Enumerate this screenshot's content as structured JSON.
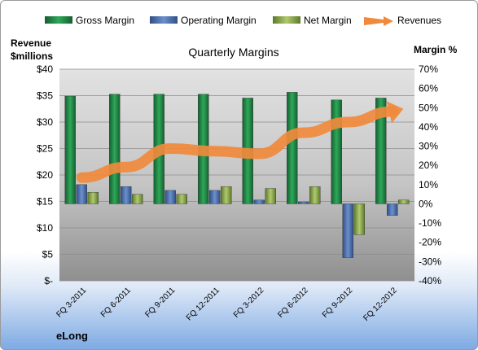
{
  "chart_data": {
    "type": "bar",
    "title": "Quarterly Margins",
    "y_left_label_line1": "Revenue",
    "y_left_label_line2": "$millions",
    "y_right_label": "Margin %",
    "brand": "eLong",
    "categories": [
      "FQ 3-2011",
      "FQ 6-2011",
      "FQ 9-2011",
      "FQ 12-2011",
      "FQ 3-2012",
      "FQ 6-2012",
      "FQ 9-2012",
      "FQ 12-2012"
    ],
    "series": [
      {
        "name": "Gross Margin",
        "axis": "right",
        "color": "#1f8a45",
        "values": [
          56,
          57,
          57,
          57,
          55,
          58,
          54,
          55
        ]
      },
      {
        "name": "Operating Margin",
        "axis": "right",
        "color": "#4a72b4",
        "values": [
          10,
          9,
          7,
          7,
          2,
          1,
          -28,
          -6
        ]
      },
      {
        "name": "Net Margin",
        "axis": "right",
        "color": "#8fad4c",
        "values": [
          6,
          5,
          5,
          9,
          8,
          9,
          -16,
          2
        ]
      },
      {
        "name": "Revenues",
        "type": "line",
        "axis": "left",
        "color": "#f08a3c",
        "values": [
          19.5,
          21.5,
          25,
          24.5,
          24,
          28,
          30,
          32
        ]
      }
    ],
    "y_left_ticks": [
      "$-",
      "$5",
      "$10",
      "$15",
      "$20",
      "$25",
      "$30",
      "$35",
      "$40"
    ],
    "y_right_ticks": [
      "-40%",
      "-30%",
      "-20%",
      "-10%",
      "0%",
      "10%",
      "20%",
      "30%",
      "40%",
      "50%",
      "60%",
      "70%"
    ],
    "y_left_range": [
      0,
      40
    ],
    "y_right_range": [
      -40,
      70
    ],
    "legend_position": "top",
    "grid": true
  }
}
